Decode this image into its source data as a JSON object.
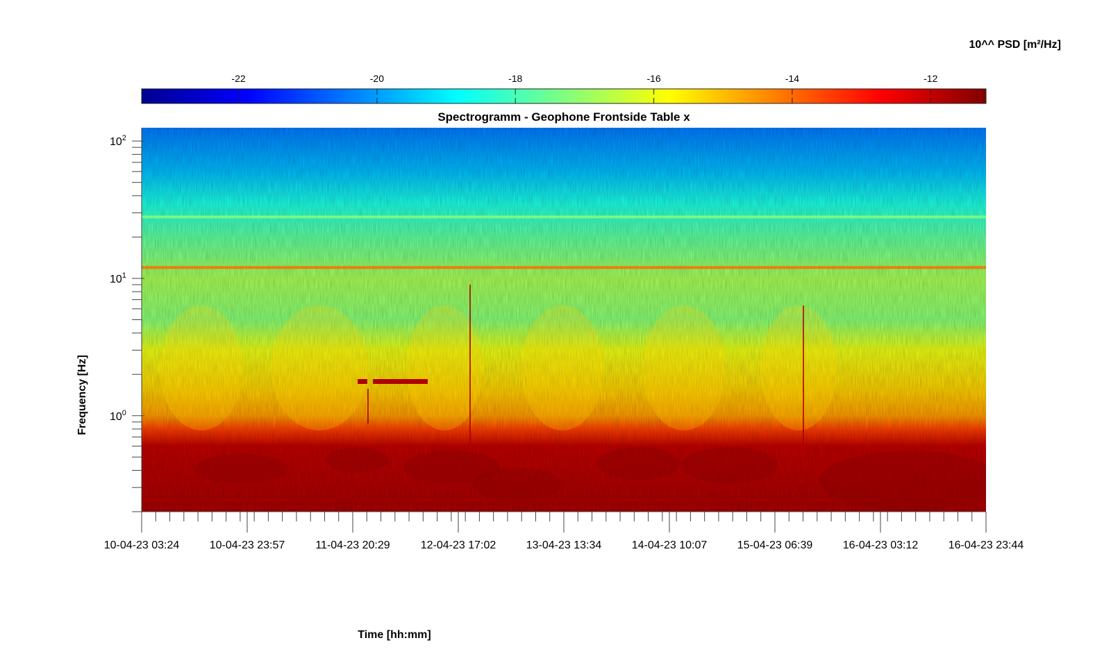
{
  "chart_data": {
    "type": "heatmap",
    "title": "Spectrogramm - Geophone Frontside Table x",
    "xlabel": "Time [hh:mm]",
    "ylabel": "Frequency [Hz]",
    "yscale": "log",
    "ylim": [
      0.2,
      125
    ],
    "x_tick_labels": [
      "10-04-23 03:24",
      "10-04-23 23:57",
      "11-04-23 20:29",
      "12-04-23 17:02",
      "13-04-23 13:34",
      "14-04-23 10:07",
      "15-04-23 06:39",
      "16-04-23 03:12",
      "16-04-23 23:44"
    ],
    "y_ticks": [
      {
        "base": "10",
        "exp": "2",
        "value": 100
      },
      {
        "base": "10",
        "exp": "1",
        "value": 10
      },
      {
        "base": "10",
        "exp": "0",
        "value": 1
      }
    ],
    "colorbar": {
      "label": "10^^ PSD [m²/Hz]",
      "range": [
        -23.4,
        -11.2
      ],
      "ticks": [
        -22,
        -20,
        -18,
        -16,
        -14,
        -12
      ],
      "tick_labels": [
        "-22",
        "-20",
        "-18",
        "-16",
        "-14",
        "-12"
      ],
      "colormap": "jet"
    },
    "level_profile": [
      {
        "freq_hz": 0.2,
        "log_psd": -11.7
      },
      {
        "freq_hz": 0.6,
        "log_psd": -12.0
      },
      {
        "freq_hz": 0.8,
        "log_psd": -13.5
      },
      {
        "freq_hz": 1.0,
        "log_psd": -14.6
      },
      {
        "freq_hz": 1.5,
        "log_psd": -15.2
      },
      {
        "freq_hz": 3.0,
        "log_psd": -16.0
      },
      {
        "freq_hz": 5.0,
        "log_psd": -17.2
      },
      {
        "freq_hz": 10,
        "log_psd": -16.8
      },
      {
        "freq_hz": 20,
        "log_psd": -17.7
      },
      {
        "freq_hz": 35,
        "log_psd": -18.5
      },
      {
        "freq_hz": 60,
        "log_psd": -19.6
      },
      {
        "freq_hz": 125,
        "log_psd": -20.4
      }
    ],
    "tones": [
      {
        "freq_hz": 12,
        "log_psd": -14.0
      },
      {
        "freq_hz": 28,
        "log_psd": -17.3
      }
    ]
  }
}
